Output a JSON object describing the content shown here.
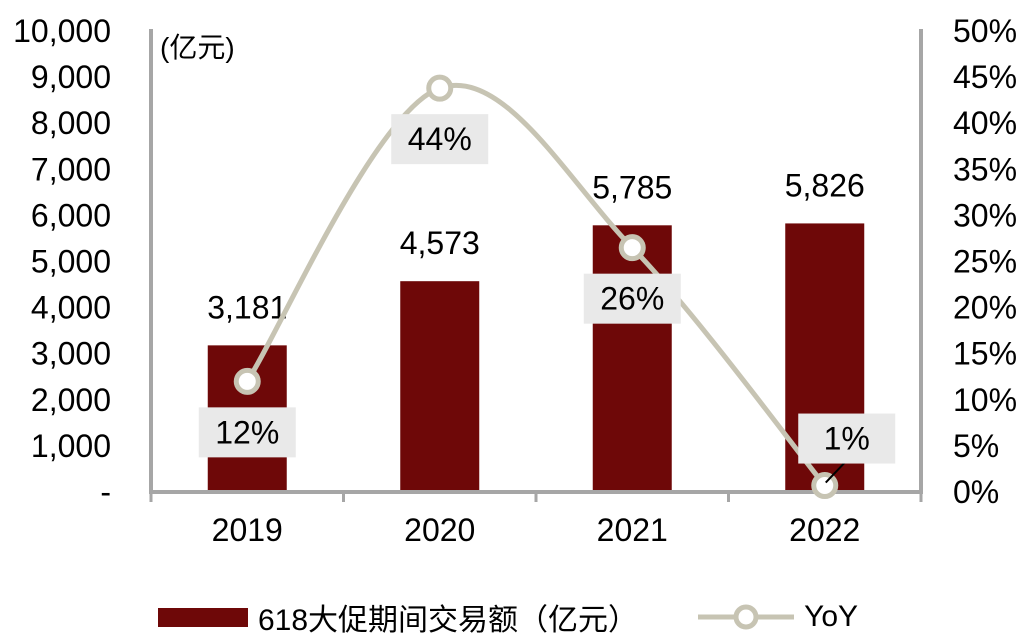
{
  "chart_data": {
    "type": "combo-bar-line",
    "categories": [
      "2019",
      "2020",
      "2021",
      "2022"
    ],
    "series": [
      {
        "name": "618大促期间交易额（亿元）",
        "type": "bar",
        "axis": "left",
        "color": "#6E0808",
        "values": [
          3181,
          4573,
          5785,
          5826
        ],
        "labels": [
          "3,181",
          "4,573",
          "5,785",
          "5,826"
        ]
      },
      {
        "name": "YoY",
        "type": "line",
        "axis": "right",
        "color": "#C7C4B3",
        "marker": "open-circle",
        "values_pct": [
          12,
          43.8,
          26.5,
          0.7
        ],
        "labels": [
          "12%",
          "44%",
          "26%",
          "1%"
        ],
        "label_background": "#E9E9E9",
        "label_placement": [
          "below",
          "below",
          "below",
          "above-right-leader"
        ]
      }
    ],
    "left_axis": {
      "title": "(亿元)",
      "min": 0,
      "max": 10000,
      "step": 1000,
      "tick_labels": [
        "-",
        "1,000",
        "2,000",
        "3,000",
        "4,000",
        "5,000",
        "6,000",
        "7,000",
        "8,000",
        "9,000",
        "10,000"
      ]
    },
    "right_axis": {
      "min": 0,
      "max": 50,
      "step": 5,
      "unit": "%",
      "tick_labels": [
        "0%",
        "5%",
        "10%",
        "15%",
        "20%",
        "25%",
        "30%",
        "35%",
        "40%",
        "45%",
        "50%"
      ]
    },
    "legend": {
      "position": "bottom",
      "items": [
        {
          "label": "618大促期间交易额（亿元）",
          "swatch": "bar",
          "color": "#6E0808"
        },
        {
          "label": "YoY",
          "swatch": "line-marker",
          "color": "#C7C4B3"
        }
      ]
    },
    "grid": "off",
    "axis_color": "#A6A6A6",
    "text_color": "#000000",
    "background": "#FFFFFF"
  }
}
